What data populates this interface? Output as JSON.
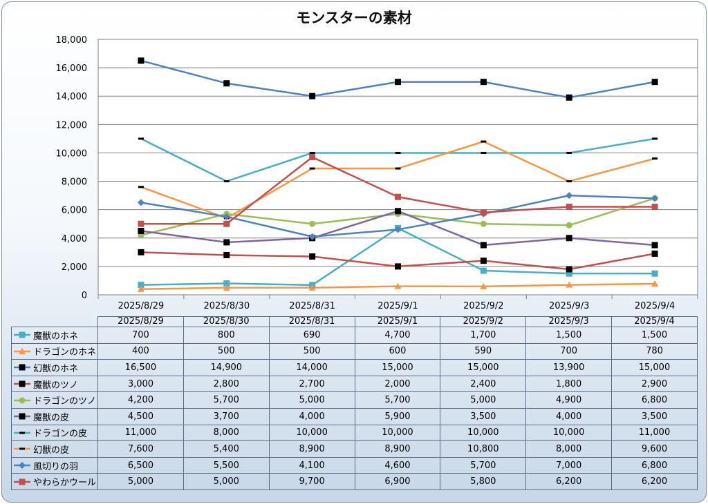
{
  "chart_data": {
    "type": "line",
    "title": "モンスターの素材",
    "categories": [
      "2025/8/29",
      "2025/8/30",
      "2025/8/31",
      "2025/9/1",
      "2025/9/2",
      "2025/9/3",
      "2025/9/4"
    ],
    "ylim": [
      0,
      18000
    ],
    "yticks": [
      "0",
      "2,000",
      "4,000",
      "6,000",
      "8,000",
      "10,000",
      "12,000",
      "14,000",
      "16,000",
      "18,000"
    ],
    "grid": true,
    "legend": "table-below",
    "series": [
      {
        "name": "魔獣のホネ",
        "color": "#4bacc6",
        "marker": "square",
        "values": [
          700,
          800,
          690,
          4700,
          1700,
          1500,
          1500
        ],
        "display": [
          "700",
          "800",
          "690",
          "4,700",
          "1,700",
          "1,500",
          "1,500"
        ]
      },
      {
        "name": "ドラゴンのホネ",
        "color": "#f79646",
        "marker": "triangle",
        "values": [
          400,
          500,
          500,
          600,
          590,
          700,
          780
        ],
        "display": [
          "400",
          "500",
          "500",
          "600",
          "590",
          "700",
          "780"
        ]
      },
      {
        "name": "幻獣のホネ",
        "color": "#4f81bd",
        "marker": "square-black",
        "values": [
          16500,
          14900,
          14000,
          15000,
          15000,
          13900,
          15000
        ],
        "display": [
          "16,500",
          "14,900",
          "14,000",
          "15,000",
          "15,000",
          "13,900",
          "15,000"
        ]
      },
      {
        "name": "魔獣のツノ",
        "color": "#c0504d",
        "marker": "square-black",
        "values": [
          3000,
          2800,
          2700,
          2000,
          2400,
          1800,
          2900
        ],
        "display": [
          "3,000",
          "2,800",
          "2,700",
          "2,000",
          "2,400",
          "1,800",
          "2,900"
        ]
      },
      {
        "name": "ドラゴンのツノ",
        "color": "#9bbb59",
        "marker": "circle",
        "values": [
          4200,
          5700,
          5000,
          5700,
          5000,
          4900,
          6800
        ],
        "display": [
          "4,200",
          "5,700",
          "5,000",
          "5,700",
          "5,000",
          "4,900",
          "6,800"
        ]
      },
      {
        "name": "魔獣の皮",
        "color": "#8064a2",
        "marker": "square-black",
        "values": [
          4500,
          3700,
          4000,
          5900,
          3500,
          4000,
          3500
        ],
        "display": [
          "4,500",
          "3,700",
          "4,000",
          "5,900",
          "3,500",
          "4,000",
          "3,500"
        ]
      },
      {
        "name": "ドラゴンの皮",
        "color": "#4bacc6",
        "marker": "dash",
        "values": [
          11000,
          8000,
          10000,
          10000,
          10000,
          10000,
          11000
        ],
        "display": [
          "11,000",
          "8,000",
          "10,000",
          "10,000",
          "10,000",
          "10,000",
          "11,000"
        ]
      },
      {
        "name": "幻獣の皮",
        "color": "#f79646",
        "marker": "dash",
        "values": [
          7600,
          5400,
          8900,
          8900,
          10800,
          8000,
          9600
        ],
        "display": [
          "7,600",
          "5,400",
          "8,900",
          "8,900",
          "10,800",
          "8,000",
          "9,600"
        ]
      },
      {
        "name": "風切りの羽",
        "color": "#4f81bd",
        "marker": "diamond",
        "values": [
          6500,
          5500,
          4100,
          4600,
          5700,
          7000,
          6800
        ],
        "display": [
          "6,500",
          "5,500",
          "4,100",
          "4,600",
          "5,700",
          "7,000",
          "6,800"
        ]
      },
      {
        "name": "やわらかウール",
        "color": "#c0504d",
        "marker": "square",
        "values": [
          5000,
          5000,
          9700,
          6900,
          5800,
          6200,
          6200
        ],
        "display": [
          "5,000",
          "5,000",
          "9,700",
          "6,900",
          "5,800",
          "6,200",
          "6,200"
        ]
      }
    ]
  }
}
